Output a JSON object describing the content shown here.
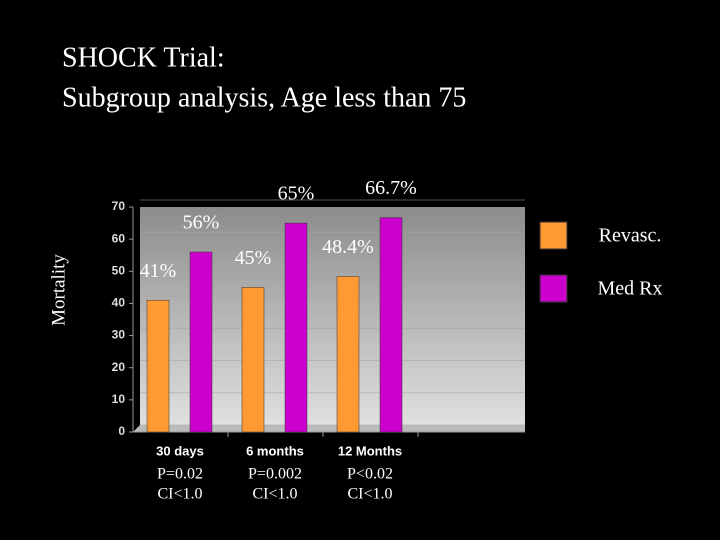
{
  "chart_data": {
    "type": "bar",
    "title": "SHOCK Trial:",
    "subtitle": "Subgroup analysis, Age less than 75",
    "y_label": "Mortality",
    "categories": [
      "30 days",
      "6 months",
      "12 Months"
    ],
    "series": [
      {
        "name": "Revasc.",
        "color": "#ff9933",
        "values": [
          41,
          45,
          48.4
        ],
        "value_labels": [
          "41%",
          "45%",
          "48.4%"
        ]
      },
      {
        "name": "Med Rx",
        "color": "#cc00cc",
        "values": [
          56,
          65,
          66.7
        ],
        "value_labels": [
          "56%",
          "65%",
          "66.7%"
        ]
      }
    ],
    "annotations": [
      [
        "P=0.02",
        "CI<1.0"
      ],
      [
        "P=0.002",
        "CI<1.0"
      ],
      [
        "P<0.02",
        "CI<1.0"
      ]
    ],
    "ylim": [
      0,
      70
    ],
    "yticks": [
      0,
      10,
      20,
      30,
      40,
      50,
      60,
      70
    ],
    "grid": true,
    "legend": "right"
  }
}
